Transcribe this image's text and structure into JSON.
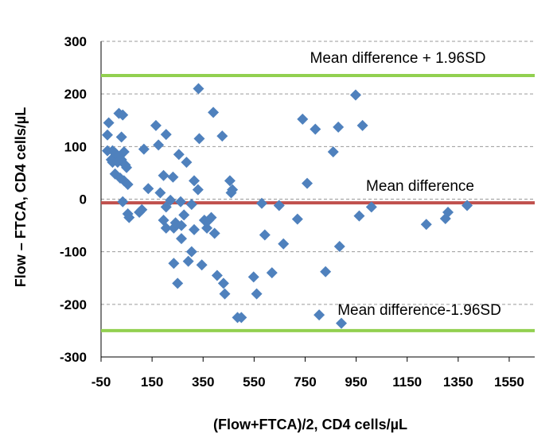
{
  "chart_data": {
    "type": "scatter",
    "xlabel": "(Flow+FTCA)/2,  CD4 cells/µL",
    "ylabel": "Flow – FTCA, CD4 cells/µL",
    "xlim": [
      -50,
      1650
    ],
    "ylim": [
      -300,
      300
    ],
    "xticks": [
      -50,
      150,
      350,
      550,
      750,
      950,
      1150,
      1350,
      1550
    ],
    "yticks": [
      300,
      200,
      100,
      0,
      -100,
      -200,
      -300
    ],
    "grid": "horizontal dashed",
    "lines": [
      {
        "label": "Mean difference + 1.96SD",
        "y": 235,
        "color": "#92d050"
      },
      {
        "label": "Mean difference",
        "y": -7,
        "color": "#c0504d"
      },
      {
        "label": "Mean difference-1.96SD",
        "y": -250,
        "color": "#92d050"
      }
    ],
    "marker_color": "#4f81bd",
    "points": [
      [
        -25,
        122
      ],
      [
        -20,
        145
      ],
      [
        -25,
        92
      ],
      [
        -10,
        75
      ],
      [
        -5,
        92
      ],
      [
        -5,
        70
      ],
      [
        5,
        88
      ],
      [
        10,
        85
      ],
      [
        5,
        48
      ],
      [
        15,
        70
      ],
      [
        20,
        163
      ],
      [
        30,
        118
      ],
      [
        35,
        160
      ],
      [
        25,
        40
      ],
      [
        30,
        75
      ],
      [
        40,
        90
      ],
      [
        45,
        65
      ],
      [
        40,
        35
      ],
      [
        50,
        60
      ],
      [
        55,
        28
      ],
      [
        35,
        -5
      ],
      [
        60,
        -35
      ],
      [
        55,
        -28
      ],
      [
        100,
        -25
      ],
      [
        110,
        -20
      ],
      [
        118,
        95
      ],
      [
        135,
        20
      ],
      [
        165,
        140
      ],
      [
        175,
        103
      ],
      [
        182,
        12
      ],
      [
        195,
        45
      ],
      [
        205,
        123
      ],
      [
        205,
        -15
      ],
      [
        195,
        -40
      ],
      [
        205,
        -55
      ],
      [
        222,
        -2
      ],
      [
        232,
        42
      ],
      [
        235,
        -55
      ],
      [
        242,
        -45
      ],
      [
        235,
        -122
      ],
      [
        255,
        85
      ],
      [
        262,
        -5
      ],
      [
        265,
        -50
      ],
      [
        265,
        -75
      ],
      [
        275,
        -30
      ],
      [
        250,
        -160
      ],
      [
        285,
        70
      ],
      [
        292,
        -118
      ],
      [
        305,
        -100
      ],
      [
        305,
        -10
      ],
      [
        315,
        35
      ],
      [
        315,
        -58
      ],
      [
        332,
        210
      ],
      [
        335,
        115
      ],
      [
        330,
        18
      ],
      [
        355,
        -40
      ],
      [
        345,
        -125
      ],
      [
        365,
        -55
      ],
      [
        372,
        -40
      ],
      [
        382,
        -35
      ],
      [
        390,
        165
      ],
      [
        395,
        -65
      ],
      [
        405,
        -145
      ],
      [
        425,
        120
      ],
      [
        430,
        -160
      ],
      [
        435,
        -180
      ],
      [
        455,
        35
      ],
      [
        460,
        12
      ],
      [
        465,
        18
      ],
      [
        485,
        -225
      ],
      [
        500,
        -225
      ],
      [
        548,
        -148
      ],
      [
        560,
        -180
      ],
      [
        580,
        -8
      ],
      [
        592,
        -68
      ],
      [
        620,
        -140
      ],
      [
        648,
        -12
      ],
      [
        665,
        -85
      ],
      [
        720,
        -38
      ],
      [
        740,
        152
      ],
      [
        758,
        30
      ],
      [
        790,
        133
      ],
      [
        805,
        -220
      ],
      [
        830,
        -138
      ],
      [
        860,
        90
      ],
      [
        880,
        137
      ],
      [
        885,
        -90
      ],
      [
        892,
        -236
      ],
      [
        948,
        198
      ],
      [
        962,
        -32
      ],
      [
        975,
        140
      ],
      [
        1010,
        -15
      ],
      [
        1225,
        -48
      ],
      [
        1300,
        -37
      ],
      [
        1310,
        -25
      ],
      [
        1385,
        -12
      ]
    ]
  }
}
